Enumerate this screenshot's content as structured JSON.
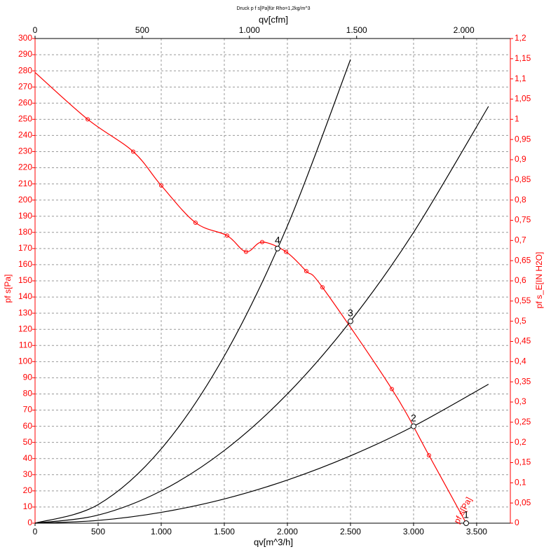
{
  "chart_data": {
    "type": "line",
    "title": "Druck p f s[Pa]für Rho=1,2kg/m^3",
    "x_label": "qv[m^3/h]",
    "x2_label": "qv[cfm]",
    "y_label": "pf s[Pa]",
    "y2_label": "pf s_E[IN H2O]",
    "grid": true,
    "xlim": [
      0,
      3767
    ],
    "xticks": [
      0,
      500,
      {
        "value": 1000,
        "label": "1.000"
      },
      {
        "value": 1500,
        "label": "1.500"
      },
      {
        "value": 2000,
        "label": "2.000"
      },
      {
        "value": 2500,
        "label": "2.500"
      },
      {
        "value": 3000,
        "label": "3.000"
      },
      {
        "value": 3500,
        "label": "3.500"
      }
    ],
    "x2lim": [
      0,
      2217
    ],
    "x2ticks": [
      0,
      500,
      {
        "value": 1000,
        "label": "1.000"
      },
      {
        "value": 1500,
        "label": "1.500"
      },
      {
        "value": 2000,
        "label": "2.000"
      }
    ],
    "ylim": [
      0,
      300
    ],
    "yticks": [
      0,
      10,
      20,
      30,
      40,
      50,
      60,
      70,
      80,
      90,
      100,
      110,
      120,
      130,
      140,
      150,
      160,
      170,
      180,
      190,
      200,
      210,
      220,
      230,
      240,
      250,
      260,
      270,
      280,
      290,
      300
    ],
    "y2lim": [
      0,
      1.2
    ],
    "y2ticks": [
      0,
      {
        "value": 0.05,
        "label": "0,05"
      },
      {
        "value": 0.1,
        "label": "0,1"
      },
      {
        "value": 0.15,
        "label": "0,15"
      },
      {
        "value": 0.2,
        "label": "0,2"
      },
      {
        "value": 0.25,
        "label": "0,25"
      },
      {
        "value": 0.3,
        "label": "0,3"
      },
      {
        "value": 0.35,
        "label": "0,35"
      },
      {
        "value": 0.4,
        "label": "0,4"
      },
      {
        "value": 0.45,
        "label": "0,45"
      },
      {
        "value": 0.5,
        "label": "0,5"
      },
      {
        "value": 0.55,
        "label": "0,55"
      },
      {
        "value": 0.6,
        "label": "0,6"
      },
      {
        "value": 0.65,
        "label": "0,65"
      },
      {
        "value": 0.7,
        "label": "0,7"
      },
      {
        "value": 0.75,
        "label": "0,75"
      },
      {
        "value": 0.8,
        "label": "0,8"
      },
      {
        "value": 0.85,
        "label": "0,85"
      },
      {
        "value": 0.9,
        "label": "0,9"
      },
      {
        "value": 0.95,
        "label": "0,95"
      },
      1,
      {
        "value": 1.05,
        "label": "1,05"
      },
      {
        "value": 1.1,
        "label": "1,1"
      },
      {
        "value": 1.15,
        "label": "1,15"
      },
      {
        "value": 1.2,
        "label": "1,2"
      }
    ],
    "series": [
      {
        "name": "pf s[Pa]",
        "color": "#ff0000",
        "markers": true,
        "x": [
          0,
          417,
          778,
          1000,
          1272,
          1522,
          1672,
          1800,
          1989,
          2150,
          2278,
          2828,
          3122,
          3417
        ],
        "values": [
          279,
          250,
          230,
          209,
          186,
          178,
          168,
          174,
          168,
          156,
          146,
          83,
          42,
          0
        ]
      },
      {
        "color": "#000000",
        "markers": false,
        "x": [
          0,
          500,
          1000,
          1500,
          2000,
          2500,
          3000,
          3594
        ],
        "values": [
          0,
          1.7,
          6.7,
          15,
          26.7,
          41.7,
          60,
          86
        ]
      },
      {
        "color": "#000000",
        "markers": false,
        "x": [
          0,
          500,
          1000,
          1500,
          2000,
          2500,
          3000,
          3594
        ],
        "values": [
          0,
          5,
          20,
          45,
          80,
          125,
          180,
          258
        ]
      },
      {
        "color": "#000000",
        "markers": false,
        "x": [
          0,
          500,
          1000,
          1500,
          2000,
          2500
        ],
        "values": [
          0,
          11.5,
          46,
          103.5,
          184,
          287
        ]
      }
    ],
    "points": [
      {
        "label": "1",
        "x": 3417,
        "y": 0
      },
      {
        "label": "2",
        "x": 3000,
        "y": 60
      },
      {
        "label": "3",
        "x": 2500,
        "y": 125
      },
      {
        "label": "4",
        "x": 1922,
        "y": 170
      }
    ]
  }
}
